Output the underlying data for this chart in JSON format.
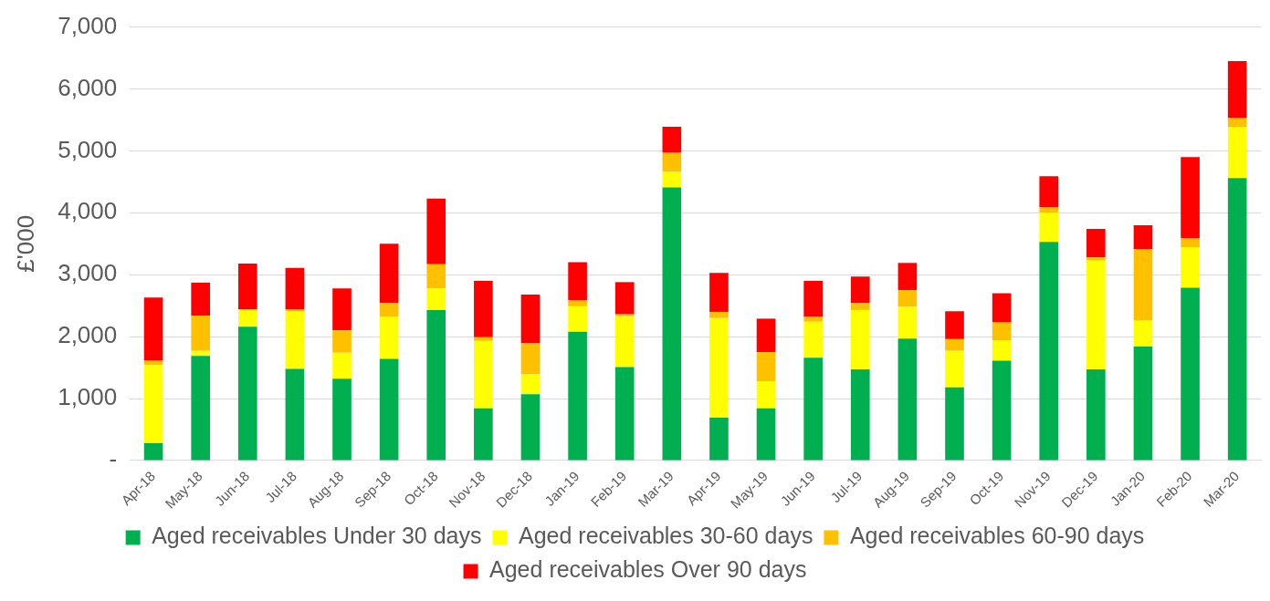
{
  "chart_data": {
    "type": "bar",
    "stacked": true,
    "ylabel": "£'000",
    "categories": [
      "Apr-18",
      "May-18",
      "Jun-18",
      "Jul-18",
      "Aug-18",
      "Sep-18",
      "Oct-18",
      "Nov-18",
      "Dec-18",
      "Jan-19",
      "Feb-19",
      "Mar-19",
      "Apr-19",
      "May-19",
      "Jun-19",
      "Jul-19",
      "Aug-19",
      "Sep-19",
      "Oct-19",
      "Nov-19",
      "Dec-19",
      "Jan-20",
      "Feb-20",
      "Mar-20"
    ],
    "series": [
      {
        "name": "Aged receivables Under 30 days",
        "color": "#00b050",
        "values": [
          280,
          1690,
          2160,
          1480,
          1320,
          1640,
          2430,
          840,
          1070,
          2080,
          1510,
          4410,
          690,
          840,
          1660,
          1470,
          1970,
          1180,
          1610,
          3530,
          1470,
          1840,
          2790,
          4560
        ]
      },
      {
        "name": "Aged receivables 30-60 days",
        "color": "#ffff00",
        "values": [
          1260,
          80,
          280,
          930,
          420,
          680,
          350,
          1090,
          320,
          410,
          820,
          250,
          1610,
          440,
          580,
          960,
          510,
          590,
          330,
          470,
          1760,
          420,
          650,
          820
        ]
      },
      {
        "name": "Aged receivables 60-90 days",
        "color": "#ffc000",
        "values": [
          70,
          570,
          null,
          30,
          360,
          220,
          390,
          60,
          500,
          100,
          30,
          310,
          100,
          470,
          80,
          110,
          270,
          190,
          290,
          90,
          50,
          1150,
          150,
          150
        ]
      },
      {
        "name": "Aged receivables Over 90 days",
        "color": "#ff0000",
        "values": [
          1020,
          530,
          740,
          670,
          680,
          960,
          1060,
          910,
          790,
          610,
          520,
          420,
          630,
          540,
          580,
          430,
          440,
          450,
          470,
          500,
          460,
          390,
          1310,
          920
        ]
      }
    ],
    "ylim": [
      0,
      7000
    ],
    "yticks": [
      {
        "value": 0,
        "label": "-"
      },
      {
        "value": 1000,
        "label": "1,000"
      },
      {
        "value": 2000,
        "label": "2,000"
      },
      {
        "value": 3000,
        "label": "3,000"
      },
      {
        "value": 4000,
        "label": "4,000"
      },
      {
        "value": 5000,
        "label": "5,000"
      },
      {
        "value": 6000,
        "label": "6,000"
      },
      {
        "value": 7000,
        "label": "7,000"
      }
    ],
    "grid": "y",
    "legend": "bottom"
  }
}
